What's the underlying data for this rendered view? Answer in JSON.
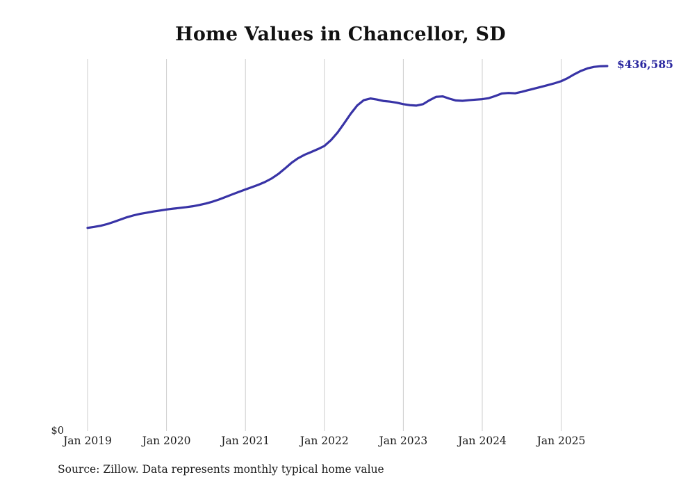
{
  "page": {
    "title": "Home Values in Chancellor, SD",
    "source_note": "Source: Zillow. Data represents monthly typical home value",
    "y_zero_label": "$0",
    "end_value_label": "$436,585"
  },
  "chart_data": {
    "type": "line",
    "title": "Home Values in Chancellor, SD",
    "series_name": "Monthly typical home value",
    "x_start": "2019-01",
    "x_end": "2025-08",
    "x_tick_labels": [
      "Jan 2019",
      "Jan 2020",
      "Jan 2021",
      "Jan 2022",
      "Jan 2023",
      "Jan 2024",
      "Jan 2025"
    ],
    "ylim": [
      0,
      436585
    ],
    "grid": "vertical-only",
    "legend": "none",
    "line_color": "#3833a6",
    "end_label_color": "#2b28a0",
    "gridline_color": "#cccccc",
    "end_value": 436585,
    "end_label": "$436,585",
    "values_monthly": [
      243000,
      244200,
      245600,
      247600,
      250200,
      253000,
      255800,
      258000,
      259800,
      261200,
      262600,
      263800,
      265000,
      266000,
      266900,
      267800,
      268900,
      270400,
      272200,
      274400,
      277000,
      280000,
      283100,
      286100,
      289000,
      291800,
      294700,
      298000,
      302200,
      307500,
      314000,
      320800,
      326300,
      330500,
      333800,
      337200,
      341000,
      348000,
      357000,
      368000,
      379500,
      389500,
      395800,
      397800,
      396500,
      394800,
      394000,
      392800,
      391000,
      389800,
      389300,
      391000,
      395800,
      399800,
      400300,
      397600,
      395400,
      395000,
      395800,
      396400,
      397000,
      398200,
      400800,
      403800,
      404400,
      404000,
      405800,
      407800,
      409800,
      411800,
      413900,
      416000,
      418500,
      422200,
      426800,
      430800,
      433800,
      435600,
      436400,
      436585
    ]
  }
}
